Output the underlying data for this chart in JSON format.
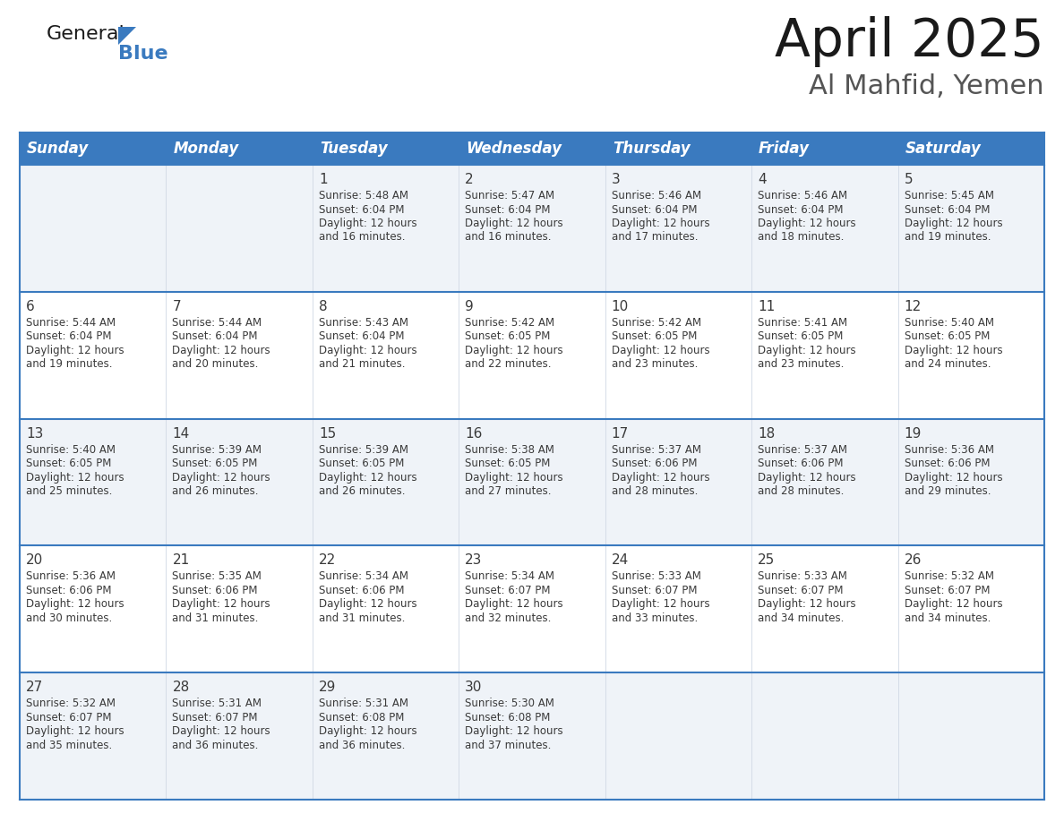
{
  "title": "April 2025",
  "subtitle": "Al Mahfid, Yemen",
  "header_bg_color": "#3a7abf",
  "header_text_color": "#ffffff",
  "days_of_week": [
    "Sunday",
    "Monday",
    "Tuesday",
    "Wednesday",
    "Thursday",
    "Friday",
    "Saturday"
  ],
  "row_bg_colors": [
    "#eff3f8",
    "#ffffff"
  ],
  "cell_text_color": "#3a3a3a",
  "line_color": "#3a7abf",
  "days": [
    {
      "date": 1,
      "col": 2,
      "row": 0,
      "sunrise": "5:48 AM",
      "sunset": "6:04 PM",
      "daylight_hours": 12,
      "daylight_minutes": 16
    },
    {
      "date": 2,
      "col": 3,
      "row": 0,
      "sunrise": "5:47 AM",
      "sunset": "6:04 PM",
      "daylight_hours": 12,
      "daylight_minutes": 16
    },
    {
      "date": 3,
      "col": 4,
      "row": 0,
      "sunrise": "5:46 AM",
      "sunset": "6:04 PM",
      "daylight_hours": 12,
      "daylight_minutes": 17
    },
    {
      "date": 4,
      "col": 5,
      "row": 0,
      "sunrise": "5:46 AM",
      "sunset": "6:04 PM",
      "daylight_hours": 12,
      "daylight_minutes": 18
    },
    {
      "date": 5,
      "col": 6,
      "row": 0,
      "sunrise": "5:45 AM",
      "sunset": "6:04 PM",
      "daylight_hours": 12,
      "daylight_minutes": 19
    },
    {
      "date": 6,
      "col": 0,
      "row": 1,
      "sunrise": "5:44 AM",
      "sunset": "6:04 PM",
      "daylight_hours": 12,
      "daylight_minutes": 19
    },
    {
      "date": 7,
      "col": 1,
      "row": 1,
      "sunrise": "5:44 AM",
      "sunset": "6:04 PM",
      "daylight_hours": 12,
      "daylight_minutes": 20
    },
    {
      "date": 8,
      "col": 2,
      "row": 1,
      "sunrise": "5:43 AM",
      "sunset": "6:04 PM",
      "daylight_hours": 12,
      "daylight_minutes": 21
    },
    {
      "date": 9,
      "col": 3,
      "row": 1,
      "sunrise": "5:42 AM",
      "sunset": "6:05 PM",
      "daylight_hours": 12,
      "daylight_minutes": 22
    },
    {
      "date": 10,
      "col": 4,
      "row": 1,
      "sunrise": "5:42 AM",
      "sunset": "6:05 PM",
      "daylight_hours": 12,
      "daylight_minutes": 23
    },
    {
      "date": 11,
      "col": 5,
      "row": 1,
      "sunrise": "5:41 AM",
      "sunset": "6:05 PM",
      "daylight_hours": 12,
      "daylight_minutes": 23
    },
    {
      "date": 12,
      "col": 6,
      "row": 1,
      "sunrise": "5:40 AM",
      "sunset": "6:05 PM",
      "daylight_hours": 12,
      "daylight_minutes": 24
    },
    {
      "date": 13,
      "col": 0,
      "row": 2,
      "sunrise": "5:40 AM",
      "sunset": "6:05 PM",
      "daylight_hours": 12,
      "daylight_minutes": 25
    },
    {
      "date": 14,
      "col": 1,
      "row": 2,
      "sunrise": "5:39 AM",
      "sunset": "6:05 PM",
      "daylight_hours": 12,
      "daylight_minutes": 26
    },
    {
      "date": 15,
      "col": 2,
      "row": 2,
      "sunrise": "5:39 AM",
      "sunset": "6:05 PM",
      "daylight_hours": 12,
      "daylight_minutes": 26
    },
    {
      "date": 16,
      "col": 3,
      "row": 2,
      "sunrise": "5:38 AM",
      "sunset": "6:05 PM",
      "daylight_hours": 12,
      "daylight_minutes": 27
    },
    {
      "date": 17,
      "col": 4,
      "row": 2,
      "sunrise": "5:37 AM",
      "sunset": "6:06 PM",
      "daylight_hours": 12,
      "daylight_minutes": 28
    },
    {
      "date": 18,
      "col": 5,
      "row": 2,
      "sunrise": "5:37 AM",
      "sunset": "6:06 PM",
      "daylight_hours": 12,
      "daylight_minutes": 28
    },
    {
      "date": 19,
      "col": 6,
      "row": 2,
      "sunrise": "5:36 AM",
      "sunset": "6:06 PM",
      "daylight_hours": 12,
      "daylight_minutes": 29
    },
    {
      "date": 20,
      "col": 0,
      "row": 3,
      "sunrise": "5:36 AM",
      "sunset": "6:06 PM",
      "daylight_hours": 12,
      "daylight_minutes": 30
    },
    {
      "date": 21,
      "col": 1,
      "row": 3,
      "sunrise": "5:35 AM",
      "sunset": "6:06 PM",
      "daylight_hours": 12,
      "daylight_minutes": 31
    },
    {
      "date": 22,
      "col": 2,
      "row": 3,
      "sunrise": "5:34 AM",
      "sunset": "6:06 PM",
      "daylight_hours": 12,
      "daylight_minutes": 31
    },
    {
      "date": 23,
      "col": 3,
      "row": 3,
      "sunrise": "5:34 AM",
      "sunset": "6:07 PM",
      "daylight_hours": 12,
      "daylight_minutes": 32
    },
    {
      "date": 24,
      "col": 4,
      "row": 3,
      "sunrise": "5:33 AM",
      "sunset": "6:07 PM",
      "daylight_hours": 12,
      "daylight_minutes": 33
    },
    {
      "date": 25,
      "col": 5,
      "row": 3,
      "sunrise": "5:33 AM",
      "sunset": "6:07 PM",
      "daylight_hours": 12,
      "daylight_minutes": 34
    },
    {
      "date": 26,
      "col": 6,
      "row": 3,
      "sunrise": "5:32 AM",
      "sunset": "6:07 PM",
      "daylight_hours": 12,
      "daylight_minutes": 34
    },
    {
      "date": 27,
      "col": 0,
      "row": 4,
      "sunrise": "5:32 AM",
      "sunset": "6:07 PM",
      "daylight_hours": 12,
      "daylight_minutes": 35
    },
    {
      "date": 28,
      "col": 1,
      "row": 4,
      "sunrise": "5:31 AM",
      "sunset": "6:07 PM",
      "daylight_hours": 12,
      "daylight_minutes": 36
    },
    {
      "date": 29,
      "col": 2,
      "row": 4,
      "sunrise": "5:31 AM",
      "sunset": "6:08 PM",
      "daylight_hours": 12,
      "daylight_minutes": 36
    },
    {
      "date": 30,
      "col": 3,
      "row": 4,
      "sunrise": "5:30 AM",
      "sunset": "6:08 PM",
      "daylight_hours": 12,
      "daylight_minutes": 37
    }
  ]
}
